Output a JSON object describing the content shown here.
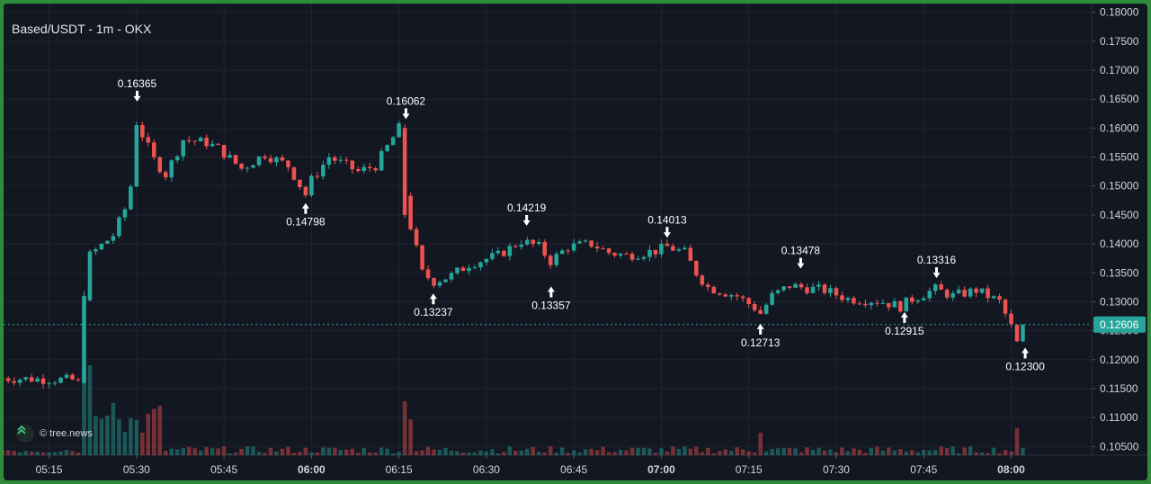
{
  "title": "Based/USDT - 1m - OKX",
  "watermark": "© tree.news",
  "colors": {
    "background": "#131722",
    "up": "#26a69a",
    "down": "#ef5350",
    "grid": "#1f2430",
    "text": "#d1d4dc",
    "price_line": "#26a69a"
  },
  "chart_data": {
    "type": "candlestick",
    "title": "Based/USDT - 1m - OKX",
    "y_axis": {
      "position": "right",
      "range": [
        0.1035,
        0.1815
      ],
      "ticks": [
        "0.18000",
        "0.17500",
        "0.17000",
        "0.16500",
        "0.16000",
        "0.15500",
        "0.15000",
        "0.14500",
        "0.14000",
        "0.13500",
        "0.13000",
        "0.12500",
        "0.12000",
        "0.11500",
        "0.11000",
        "0.10500"
      ]
    },
    "x_axis": {
      "ticks": [
        {
          "label": "05:15",
          "min": 315,
          "bold": false
        },
        {
          "label": "05:30",
          "min": 330,
          "bold": false
        },
        {
          "label": "05:45",
          "min": 345,
          "bold": false
        },
        {
          "label": "06:00",
          "min": 360,
          "bold": true
        },
        {
          "label": "06:15",
          "min": 375,
          "bold": false
        },
        {
          "label": "06:30",
          "min": 390,
          "bold": false
        },
        {
          "label": "06:45",
          "min": 405,
          "bold": false
        },
        {
          "label": "07:00",
          "min": 420,
          "bold": true
        },
        {
          "label": "07:15",
          "min": 435,
          "bold": false
        },
        {
          "label": "07:30",
          "min": 450,
          "bold": false
        },
        {
          "label": "07:45",
          "min": 465,
          "bold": false
        },
        {
          "label": "08:00",
          "min": 480,
          "bold": true
        }
      ],
      "range_minutes": [
        307.2,
        493.8
      ]
    },
    "current_price": "0.12606",
    "current_price_value": 0.12606,
    "annotations": [
      {
        "label": "0.16365",
        "time": 330.1,
        "price": 0.16365,
        "type": "high"
      },
      {
        "label": "0.14798",
        "time": 359.0,
        "price": 0.14798,
        "type": "low"
      },
      {
        "label": "0.16062",
        "time": 376.2,
        "price": 0.16062,
        "type": "high"
      },
      {
        "label": "0.13237",
        "time": 380.9,
        "price": 0.13237,
        "type": "low"
      },
      {
        "label": "0.14219",
        "time": 396.9,
        "price": 0.14219,
        "type": "high"
      },
      {
        "label": "0.13357",
        "time": 401.1,
        "price": 0.13357,
        "type": "low"
      },
      {
        "label": "0.14013",
        "time": 421.0,
        "price": 0.14013,
        "type": "high"
      },
      {
        "label": "0.12713",
        "time": 437.0,
        "price": 0.12713,
        "type": "low"
      },
      {
        "label": "0.13478",
        "time": 443.9,
        "price": 0.13478,
        "type": "high"
      },
      {
        "label": "0.12915",
        "time": 461.7,
        "price": 0.12915,
        "type": "low"
      },
      {
        "label": "0.13316",
        "time": 467.2,
        "price": 0.13316,
        "type": "high"
      },
      {
        "label": "0.12300",
        "time": 482.4,
        "price": 0.123,
        "type": "low"
      }
    ],
    "key_closes": [
      [
        307,
        0.1168
      ],
      [
        319,
        0.1165
      ],
      [
        320,
        0.116
      ],
      [
        321,
        0.131
      ],
      [
        322,
        0.138
      ],
      [
        326,
        0.1415
      ],
      [
        328,
        0.146
      ],
      [
        329,
        0.15
      ],
      [
        330,
        0.161
      ],
      [
        333,
        0.1545
      ],
      [
        335,
        0.152
      ],
      [
        338,
        0.158
      ],
      [
        342,
        0.1575
      ],
      [
        344,
        0.1565
      ],
      [
        348,
        0.153
      ],
      [
        352,
        0.1555
      ],
      [
        356,
        0.1535
      ],
      [
        359,
        0.1485
      ],
      [
        360,
        0.151
      ],
      [
        363,
        0.155
      ],
      [
        368,
        0.1525
      ],
      [
        371,
        0.1535
      ],
      [
        375,
        0.16
      ],
      [
        376,
        0.1485
      ],
      [
        377,
        0.143
      ],
      [
        379,
        0.135
      ],
      [
        381,
        0.1335
      ],
      [
        384,
        0.1345
      ],
      [
        387,
        0.1365
      ],
      [
        392,
        0.138
      ],
      [
        396,
        0.1405
      ],
      [
        399,
        0.1395
      ],
      [
        401,
        0.137
      ],
      [
        404,
        0.1395
      ],
      [
        408,
        0.14
      ],
      [
        411,
        0.1385
      ],
      [
        414,
        0.138
      ],
      [
        419,
        0.1388
      ],
      [
        421,
        0.1395
      ],
      [
        424,
        0.1385
      ],
      [
        426,
        0.135
      ],
      [
        428,
        0.1325
      ],
      [
        433,
        0.131
      ],
      [
        436,
        0.129
      ],
      [
        437,
        0.128
      ],
      [
        439,
        0.131
      ],
      [
        442,
        0.1328
      ],
      [
        444,
        0.1325
      ],
      [
        448,
        0.132
      ],
      [
        452,
        0.1305
      ],
      [
        457,
        0.1302
      ],
      [
        461,
        0.1292
      ],
      [
        463,
        0.1305
      ],
      [
        467,
        0.1322
      ],
      [
        470,
        0.131
      ],
      [
        474,
        0.132
      ],
      [
        478,
        0.13
      ],
      [
        481,
        0.1235
      ],
      [
        482,
        0.1262
      ]
    ]
  }
}
